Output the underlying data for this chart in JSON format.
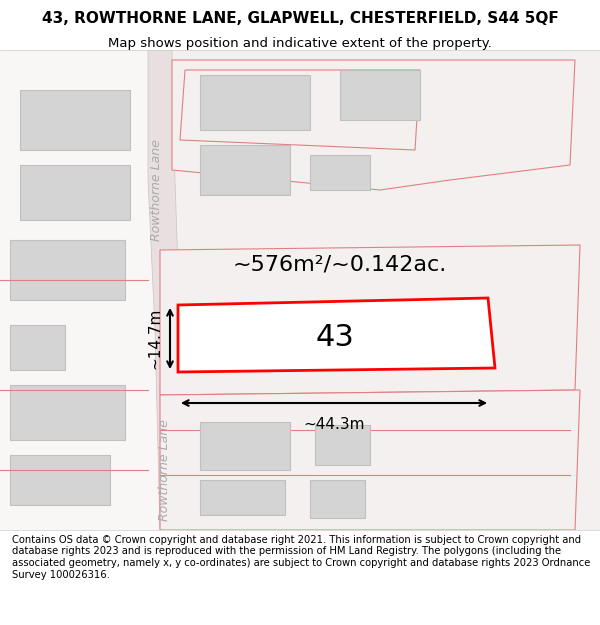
{
  "title": "43, ROWTHORNE LANE, GLAPWELL, CHESTERFIELD, S44 5QF",
  "subtitle": "Map shows position and indicative extent of the property.",
  "footer": "Contains OS data © Crown copyright and database right 2021. This information is subject to Crown copyright and database rights 2023 and is reproduced with the permission of HM Land Registry. The polygons (including the associated geometry, namely x, y co-ordinates) are subject to Crown copyright and database rights 2023 Ordnance Survey 100026316.",
  "background_color": "#ffffff",
  "map_background": "#f7f7f7",
  "road_color": "#e8d8d8",
  "plot_outline_color": "#e08080",
  "highlight_color": "#ff0000",
  "building_color": "#d8d8d8",
  "area_text": "~576m²/~0.142ac.",
  "number_text": "43",
  "dim_width": "~44.3m",
  "dim_height": "~14.7m",
  "road_label_top": "Rowthorne Lane",
  "road_label_bottom": "Rowthorne Lane"
}
